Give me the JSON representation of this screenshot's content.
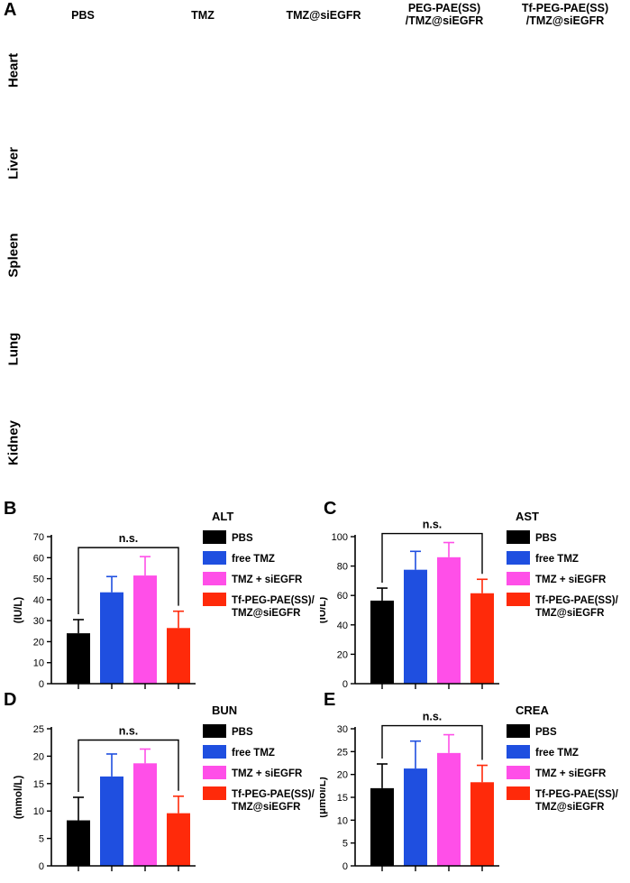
{
  "panel_a": {
    "letter": "A",
    "columns": [
      "PBS",
      "TMZ",
      "TMZ@siEGFR",
      "PEG-PAE(SS)\n/TMZ@siEGFR",
      "Tf-PEG-PAE(SS)\n/TMZ@siEGFR"
    ],
    "rows": [
      "Heart",
      "Liver",
      "Spleen",
      "Lung",
      "Kidney"
    ]
  },
  "legend_entries": [
    "PBS",
    "free TMZ",
    "TMZ + siEGFR",
    "Tf-PEG-PAE(SS)/\nTMZ@siEGFR"
  ],
  "colors": {
    "PBS": "#000000",
    "free TMZ": "#1f4fe0",
    "TMZ + siEGFR": "#ff4fe8",
    "Tf-PEG-PAE(SS)": "#ff2a0a",
    "tissue_base": "#e8609a",
    "tissue_dark": "#b03a86",
    "tissue_light": "#f4c8dc"
  },
  "chart_data": [
    {
      "type": "bar",
      "letter": "B",
      "title": "ALT",
      "ylabel": "(IU/L)",
      "ylim": [
        0,
        70
      ],
      "ticks": [
        0,
        10,
        20,
        30,
        40,
        50,
        60,
        70
      ],
      "values": [
        24,
        43.5,
        51.5,
        26.5
      ],
      "errors": [
        6.5,
        7.5,
        9,
        8
      ],
      "significance": "n.s."
    },
    {
      "type": "bar",
      "letter": "C",
      "title": "AST",
      "ylabel": "(IU/L)",
      "ylim": [
        0,
        100
      ],
      "ticks": [
        0,
        20,
        40,
        60,
        80,
        100
      ],
      "values": [
        56.5,
        77.5,
        86,
        61.5
      ],
      "errors": [
        8.5,
        12.5,
        10,
        9.5
      ],
      "significance": "n.s."
    },
    {
      "type": "bar",
      "letter": "D",
      "title": "BUN",
      "ylabel": "(mmol/L)",
      "ylim": [
        0,
        25
      ],
      "ticks": [
        0,
        5,
        10,
        15,
        20,
        25
      ],
      "values": [
        8.3,
        16.3,
        18.7,
        9.6
      ],
      "errors": [
        4.2,
        4.1,
        2.6,
        3.1
      ],
      "significance": "n.s."
    },
    {
      "type": "bar",
      "letter": "E",
      "title": "CREA",
      "ylabel": "(μmol/L)",
      "ylim": [
        0,
        30
      ],
      "ticks": [
        0,
        5,
        10,
        15,
        20,
        25,
        30
      ],
      "values": [
        17,
        21.3,
        24.7,
        18.3
      ],
      "errors": [
        5.3,
        6,
        4,
        3.7
      ],
      "significance": "n.s."
    }
  ]
}
